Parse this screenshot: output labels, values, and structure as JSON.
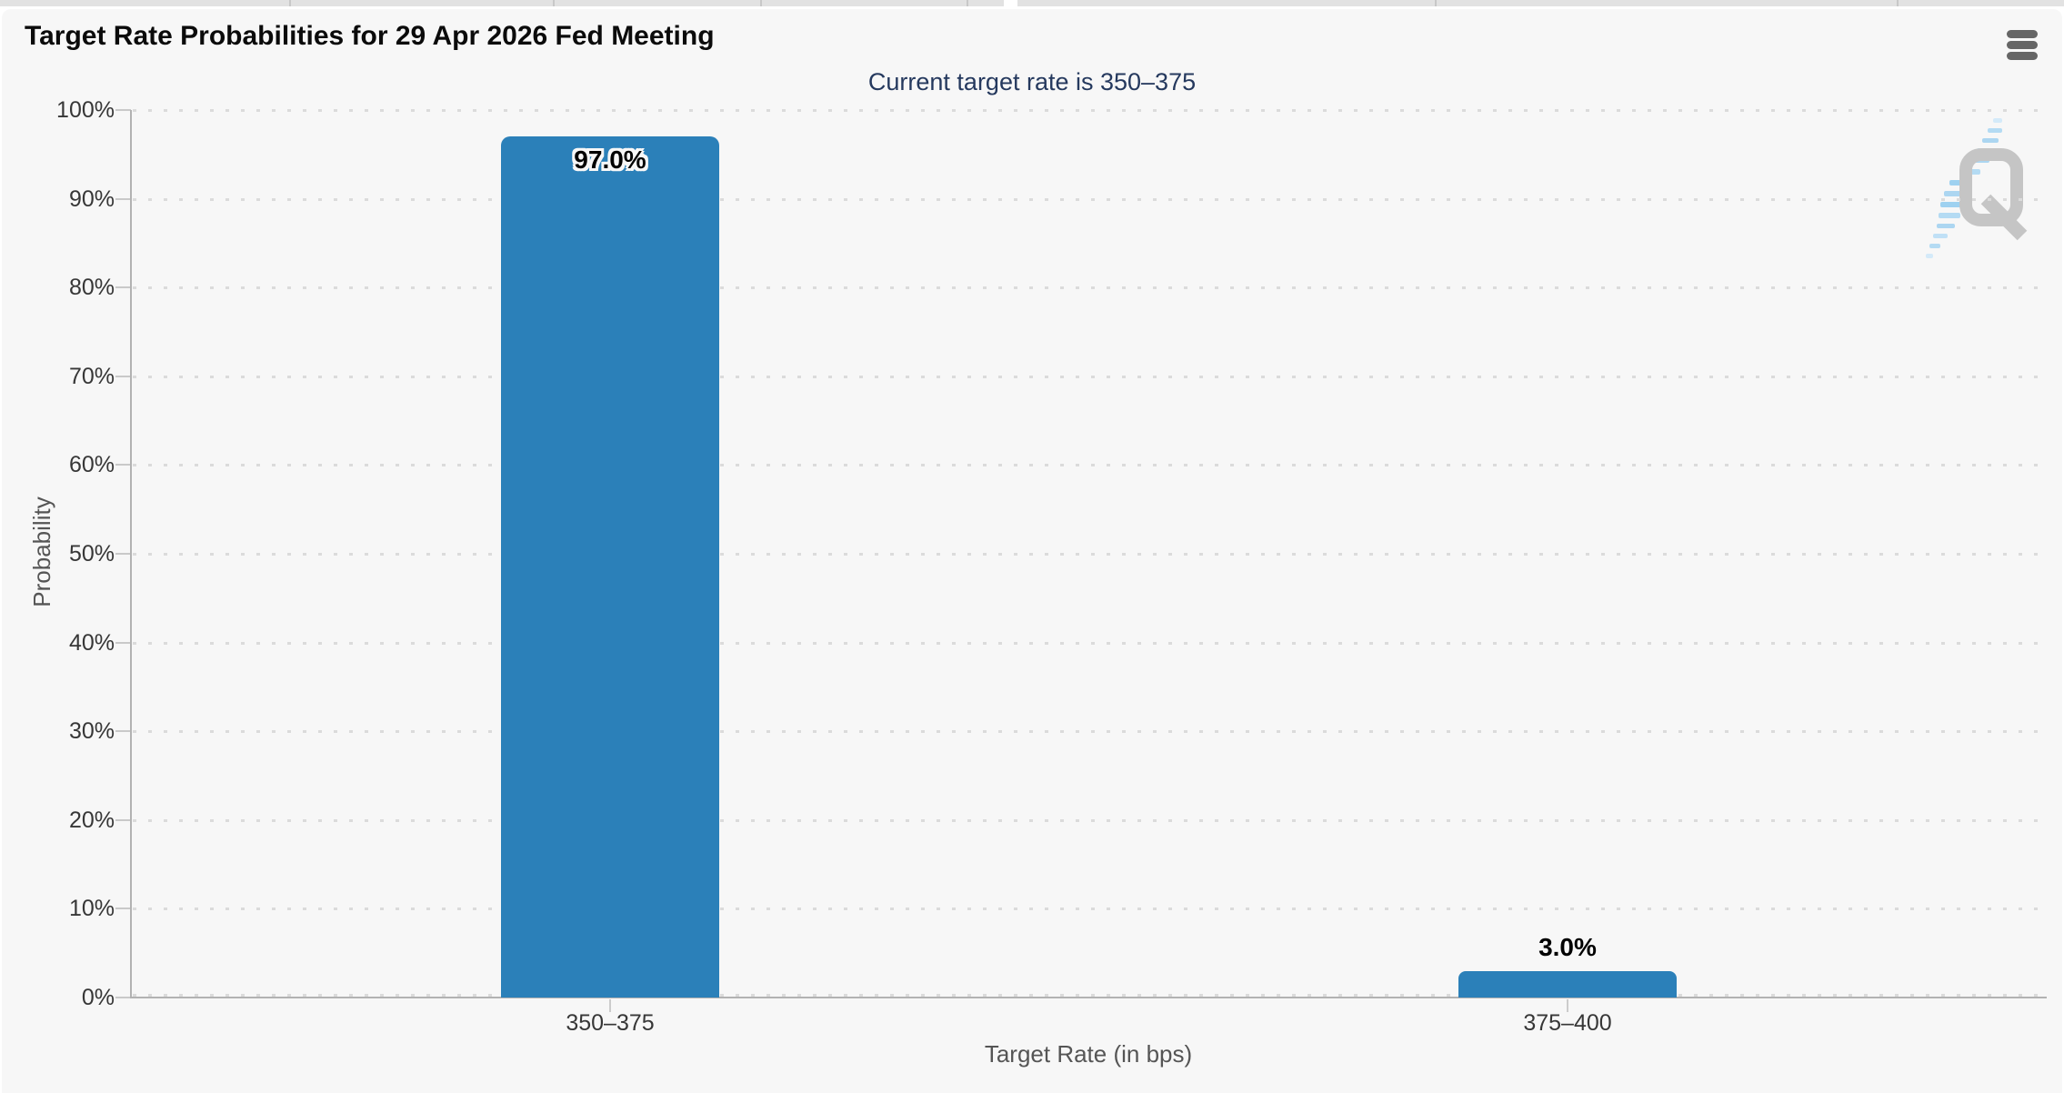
{
  "header": {
    "menu_icon": "hamburger-icon"
  },
  "chart_data": {
    "type": "bar",
    "title": "Target Rate Probabilities for 29 Apr 2026 Fed Meeting",
    "subtitle": "Current target rate is 350–375",
    "categories": [
      "350–375",
      "375–400"
    ],
    "values": [
      97.0,
      3.0
    ],
    "value_labels": [
      "97.0%",
      "3.0%"
    ],
    "xlabel": "Target Rate (in bps)",
    "ylabel": "Probability",
    "ylim": [
      0,
      100
    ],
    "ytick_step": 10,
    "ytick_labels": [
      "0%",
      "10%",
      "20%",
      "30%",
      "40%",
      "50%",
      "60%",
      "70%",
      "80%",
      "90%",
      "100%"
    ],
    "grid": "dotted-horizontal",
    "legend": "none",
    "bar_color": "#2b80b9"
  },
  "watermark": {
    "letter": "Q",
    "letter_color": "#bdbdbd",
    "dash_color": "#9fd1f1"
  },
  "colors": {
    "panel_background": "#f7f7f7",
    "subtitle_text": "#25395e",
    "axis_line": "#b2b2b2",
    "grid_dot": "#dbdbdb",
    "tick": "#c9c9c9",
    "label_text": "#373737",
    "axis_title_text": "#555555",
    "menu_icon": "#666666"
  }
}
